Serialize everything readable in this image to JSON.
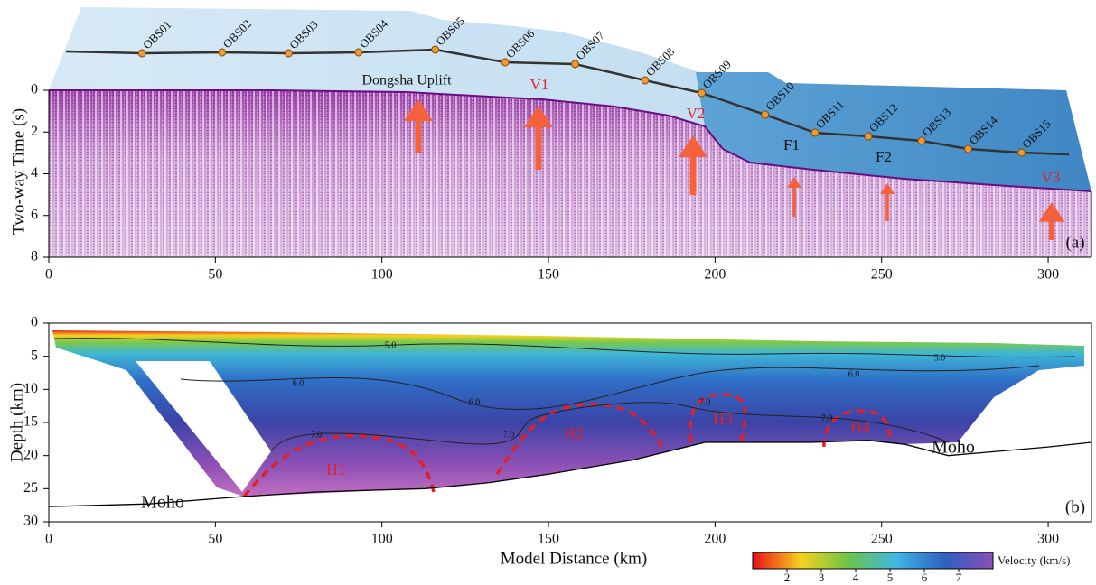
{
  "chart_data": [
    {
      "type": "section",
      "ylabel": "Two-way Time (s)",
      "panel_label": "(a)",
      "xlim": [
        0,
        313
      ],
      "xticks": [
        0,
        50,
        100,
        150,
        200,
        250,
        300
      ],
      "ylim": [
        0,
        8
      ],
      "yticks": [
        0,
        2,
        4,
        6,
        8
      ],
      "stations": {
        "names": [
          "OBS01",
          "OBS02",
          "OBS03",
          "OBS04",
          "OBS05",
          "OBS06",
          "OBS07",
          "OBS08",
          "OBS09",
          "OBS10",
          "OBS11",
          "OBS12",
          "OBS13",
          "OBS14",
          "OBS15"
        ],
        "x": [
          28,
          52,
          72,
          93,
          116,
          137,
          158,
          179,
          196,
          215,
          230,
          246,
          262,
          276,
          292
        ]
      },
      "annotations": [
        "Dongsha Uplift",
        "V1",
        "V2",
        "F1",
        "F2",
        "V3"
      ]
    },
    {
      "type": "velocity",
      "xlabel": "Model Distance (km)",
      "ylabel": "Depth (km)",
      "panel_label": "(b)",
      "xlim": [
        0,
        313
      ],
      "xticks": [
        0,
        50,
        100,
        150,
        200,
        250,
        300
      ],
      "ylim": [
        0,
        30
      ],
      "yticks": [
        0,
        5,
        10,
        15,
        20,
        25,
        30
      ],
      "contours": [
        {
          "value": 5,
          "label": "5.0"
        },
        {
          "value": 6,
          "label": "6.0"
        },
        {
          "value": 7,
          "label": "7.0"
        }
      ],
      "anomalies": [
        "H1",
        "H2",
        "H3",
        "H4"
      ],
      "moho": {
        "label": "Moho",
        "x": [
          0,
          30,
          58,
          80,
          113,
          132,
          150,
          175,
          197,
          215,
          229,
          246,
          257,
          270,
          284,
          300,
          313
        ],
        "values": [
          27.7,
          27.3,
          26.2,
          25.5,
          25,
          24.1,
          22.8,
          20.7,
          18,
          18,
          18,
          17.7,
          18.3,
          20,
          19.4,
          18.7,
          18
        ]
      },
      "colorbar": {
        "label": "Velocity (km/s)",
        "lim": [
          1,
          8
        ],
        "ticks": [
          2,
          3,
          4,
          5,
          6,
          7
        ]
      }
    }
  ]
}
